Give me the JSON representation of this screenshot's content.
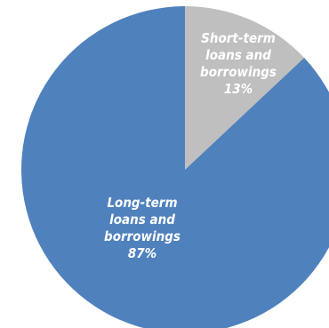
{
  "chart_data": {
    "type": "pie",
    "title": "",
    "slices": [
      {
        "label": "Short-term loans and borrowings",
        "label_lines": [
          "Short-term",
          "loans and",
          "borrowings"
        ],
        "value": 13,
        "percent_label": "13%",
        "color": "#bfbfbf"
      },
      {
        "label": "Long-term loans and borrowings",
        "label_lines": [
          "Long-term",
          "loans and",
          "borrowings"
        ],
        "value": 87,
        "percent_label": "87%",
        "color": "#4f81bd"
      }
    ],
    "start_angle": "12 o'clock",
    "direction": "clockwise",
    "legend": "none",
    "data_labels": "inside"
  }
}
